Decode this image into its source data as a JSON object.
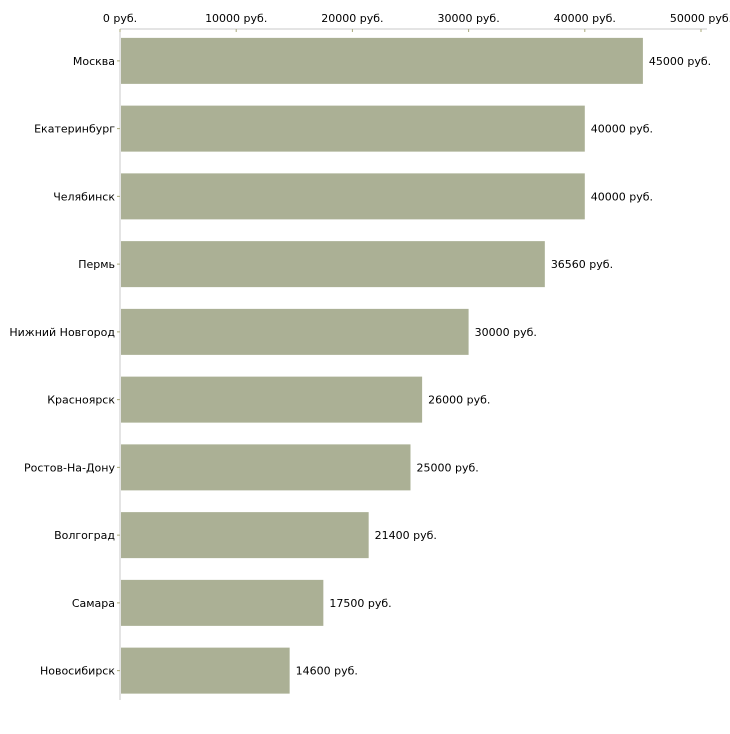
{
  "chart_data": {
    "type": "bar",
    "orientation": "horizontal",
    "title": "",
    "xlabel": "",
    "ylabel": "",
    "unit_suffix": " руб.",
    "xlim": [
      0,
      50000
    ],
    "ticks": [
      0,
      10000,
      20000,
      30000,
      40000,
      50000
    ],
    "tick_labels": [
      "0 руб.",
      "10000 руб.",
      "20000 руб.",
      "30000 руб.",
      "40000 руб.",
      "50000 руб."
    ],
    "categories": [
      "Москва",
      "Екатеринбург",
      "Челябинск",
      "Пермь",
      "Нижний Новгород",
      "Красноярск",
      "Ростов-На-Дону",
      "Волгоград",
      "Самара",
      "Новосибирск"
    ],
    "values": [
      45000,
      40000,
      40000,
      36560,
      30000,
      26000,
      25000,
      21400,
      17500,
      14600
    ],
    "value_labels": [
      "45000 руб.",
      "40000 руб.",
      "40000 руб.",
      "36560 руб.",
      "30000 руб.",
      "26000 руб.",
      "25000 руб.",
      "21400 руб.",
      "17500 руб.",
      "14600 руб."
    ],
    "grid": false,
    "colors": {
      "bar": "#abb095",
      "axis": "#c8c8c8",
      "tick": "#a8a87a"
    }
  }
}
